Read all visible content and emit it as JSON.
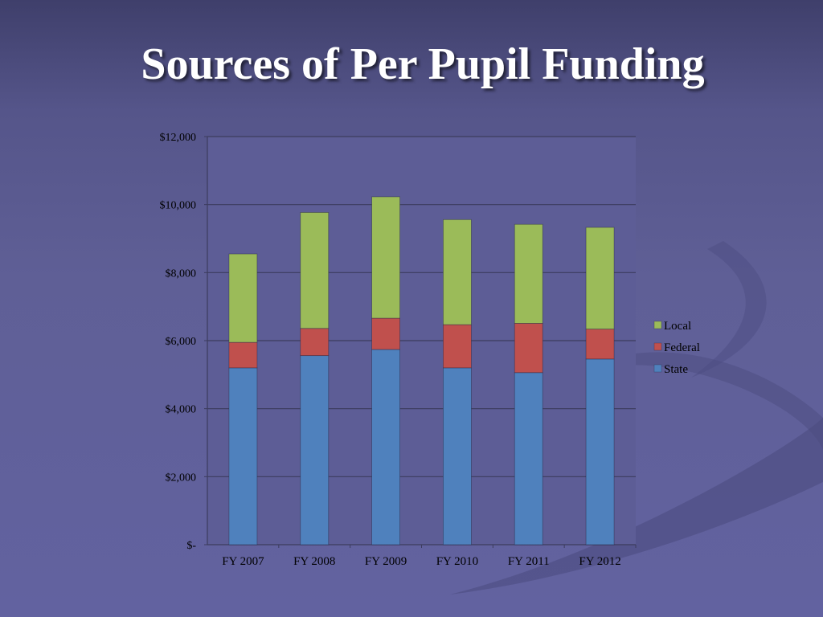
{
  "slide": {
    "title": "Sources of Per Pupil Funding"
  },
  "chart_data": {
    "type": "bar",
    "stacked": true,
    "categories": [
      "FY 2007",
      "FY 2008",
      "FY 2009",
      "FY 2010",
      "FY 2011",
      "FY 2012"
    ],
    "series": [
      {
        "name": "State",
        "color": "#4f81bd",
        "values": [
          5200,
          5560,
          5740,
          5200,
          5060,
          5460
        ]
      },
      {
        "name": "Federal",
        "color": "#c0504d",
        "values": [
          750,
          800,
          920,
          1270,
          1450,
          880
        ]
      },
      {
        "name": "Local",
        "color": "#9bbb59",
        "values": [
          2600,
          3410,
          3570,
          3090,
          2910,
          2990
        ]
      }
    ],
    "ylim": [
      0,
      12000
    ],
    "yticks": [
      0,
      2000,
      4000,
      6000,
      8000,
      10000,
      12000
    ],
    "ytick_labels": [
      "$-",
      "$2,000",
      "$4,000",
      "$6,000",
      "$8,000",
      "$10,000",
      "$12,000"
    ],
    "grid": true,
    "legend": {
      "position": "right",
      "entries": [
        "Local",
        "Federal",
        "State"
      ]
    },
    "title": "",
    "xlabel": "",
    "ylabel": ""
  }
}
